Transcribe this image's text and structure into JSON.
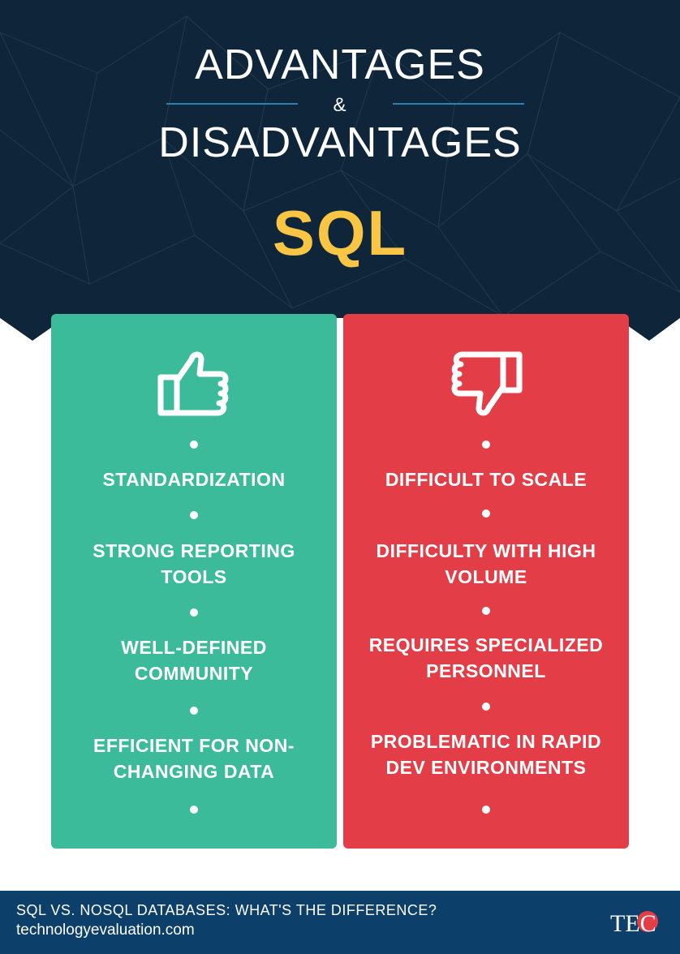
{
  "header": {
    "line1": "ADVANTAGES",
    "ampersand": "&",
    "line2": "DISADVANTAGES",
    "topic": "SQL"
  },
  "advantages": {
    "icon": "thumbs-up-icon",
    "items": [
      "STANDARDIZATION",
      "STRONG REPORTING TOOLS",
      "WELL-DEFINED COMMUNITY",
      "EFFICIENT FOR NON-CHANGING DATA"
    ]
  },
  "disadvantages": {
    "icon": "thumbs-down-icon",
    "items": [
      "DIFFICULT TO SCALE",
      "DIFFICULTY WITH HIGH VOLUME",
      "REQUIRES SPECIALIZED PERSONNEL",
      "PROBLEMATIC IN RAPID DEV ENVIRONMENTS"
    ]
  },
  "footer": {
    "headline": "SQL VS. NOSQL DATABASES: WHAT'S THE DIFFERENCE?",
    "url": "technologyevaluation.com",
    "logo": "TEC logo"
  },
  "colors": {
    "navy": "#0f2539",
    "yellow": "#f9c545",
    "green": "#3cbb9b",
    "red": "#e33e48",
    "footer_blue": "#0c3f6a"
  }
}
